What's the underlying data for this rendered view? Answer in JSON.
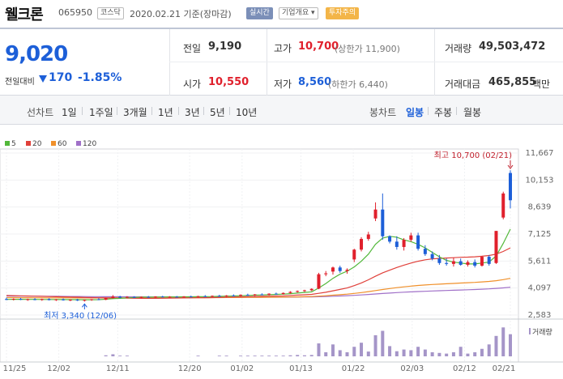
{
  "header": {
    "name": "웰크론",
    "code": "065950",
    "market": "코스닥",
    "date": "2020.02.21 기준(장마감)",
    "live_tag": "실시간",
    "info_tag": "기업개요 ▾",
    "warning_tag": "투자주의"
  },
  "summary": {
    "price": "9,020",
    "change_label": "전일대비",
    "change_value": "170",
    "change_pct": "-1.85%",
    "prev_label": "전일",
    "prev_value": "9,190",
    "high_label": "고가",
    "high_value": "10,700",
    "upper_limit": "(상한가 11,900)",
    "volume_label": "거래량",
    "volume_value": "49,503,472",
    "open_label": "시가",
    "open_value": "10,550",
    "low_label": "저가",
    "low_value": "8,560",
    "lower_limit": "(하한가 6,440)",
    "amount_label": "거래대금",
    "amount_value": "465,855",
    "amount_unit": "백만"
  },
  "rangebar": {
    "line_label": "선차트",
    "ranges": [
      "1일",
      "1주일",
      "3개월",
      "1년",
      "3년",
      "5년",
      "10년"
    ],
    "candle_label": "봉차트",
    "candles": [
      "일봉",
      "주봉",
      "월봉"
    ],
    "active_candle": "일봉"
  },
  "colors": {
    "up": "#e0202c",
    "down": "#1d5fd8",
    "ma5": "#52b83a",
    "ma20": "#e0403a",
    "ma60": "#f0902a",
    "ma120": "#a070c8",
    "volume": "#a595c8"
  },
  "chart_data": {
    "type": "candlestick",
    "legend": [
      {
        "name": "5",
        "color": "#52b83a"
      },
      {
        "name": "20",
        "color": "#e0403a"
      },
      {
        "name": "60",
        "color": "#f0902a"
      },
      {
        "name": "120",
        "color": "#a070c8"
      }
    ],
    "y_ticks": [
      "11,667",
      "10,153",
      "8,639",
      "7,125",
      "5,611",
      "4,097",
      "2,583"
    ],
    "ylim": [
      2583,
      11667
    ],
    "x_ticks": [
      "11/25",
      "12/02",
      "12/11",
      "12/20",
      "01/02",
      "01/13",
      "01/22",
      "02/03",
      "02/12",
      "02/21"
    ],
    "volume_label": "거래량",
    "high_annotation": "최고 10,700 (02/21)",
    "low_annotation": "최저 3,340 (12/06)",
    "candles": [
      {
        "o": 3480,
        "h": 3560,
        "l": 3420,
        "c": 3450
      },
      {
        "o": 3450,
        "h": 3520,
        "l": 3400,
        "c": 3490
      },
      {
        "o": 3490,
        "h": 3540,
        "l": 3420,
        "c": 3440
      },
      {
        "o": 3440,
        "h": 3500,
        "l": 3380,
        "c": 3470
      },
      {
        "o": 3470,
        "h": 3530,
        "l": 3410,
        "c": 3430
      },
      {
        "o": 3430,
        "h": 3500,
        "l": 3380,
        "c": 3480
      },
      {
        "o": 3480,
        "h": 3520,
        "l": 3400,
        "c": 3420
      },
      {
        "o": 3420,
        "h": 3480,
        "l": 3370,
        "c": 3460
      },
      {
        "o": 3460,
        "h": 3510,
        "l": 3390,
        "c": 3410
      },
      {
        "o": 3410,
        "h": 3470,
        "l": 3360,
        "c": 3440
      },
      {
        "o": 3440,
        "h": 3490,
        "l": 3370,
        "c": 3400
      },
      {
        "o": 3400,
        "h": 3460,
        "l": 3340,
        "c": 3430
      },
      {
        "o": 3430,
        "h": 3480,
        "l": 3380,
        "c": 3470
      },
      {
        "o": 3470,
        "h": 3520,
        "l": 3420,
        "c": 3440
      },
      {
        "o": 3440,
        "h": 3560,
        "l": 3420,
        "c": 3540
      },
      {
        "o": 3540,
        "h": 3700,
        "l": 3500,
        "c": 3620
      },
      {
        "o": 3620,
        "h": 3660,
        "l": 3520,
        "c": 3560
      },
      {
        "o": 3560,
        "h": 3640,
        "l": 3520,
        "c": 3600
      },
      {
        "o": 3600,
        "h": 3640,
        "l": 3540,
        "c": 3570
      },
      {
        "o": 3570,
        "h": 3620,
        "l": 3530,
        "c": 3600
      },
      {
        "o": 3600,
        "h": 3650,
        "l": 3550,
        "c": 3580
      },
      {
        "o": 3580,
        "h": 3640,
        "l": 3540,
        "c": 3620
      },
      {
        "o": 3620,
        "h": 3660,
        "l": 3570,
        "c": 3590
      },
      {
        "o": 3590,
        "h": 3640,
        "l": 3550,
        "c": 3610
      },
      {
        "o": 3610,
        "h": 3650,
        "l": 3570,
        "c": 3590
      },
      {
        "o": 3590,
        "h": 3640,
        "l": 3550,
        "c": 3620
      },
      {
        "o": 3620,
        "h": 3670,
        "l": 3580,
        "c": 3600
      },
      {
        "o": 3600,
        "h": 3660,
        "l": 3560,
        "c": 3640
      },
      {
        "o": 3640,
        "h": 3700,
        "l": 3600,
        "c": 3620
      },
      {
        "o": 3620,
        "h": 3680,
        "l": 3580,
        "c": 3660
      },
      {
        "o": 3660,
        "h": 3720,
        "l": 3620,
        "c": 3640
      },
      {
        "o": 3640,
        "h": 3700,
        "l": 3600,
        "c": 3680
      },
      {
        "o": 3680,
        "h": 3740,
        "l": 3630,
        "c": 3660
      },
      {
        "o": 3660,
        "h": 3740,
        "l": 3620,
        "c": 3720
      },
      {
        "o": 3720,
        "h": 3780,
        "l": 3660,
        "c": 3690
      },
      {
        "o": 3690,
        "h": 3760,
        "l": 3650,
        "c": 3740
      },
      {
        "o": 3740,
        "h": 3800,
        "l": 3700,
        "c": 3720
      },
      {
        "o": 3720,
        "h": 3800,
        "l": 3680,
        "c": 3780
      },
      {
        "o": 3780,
        "h": 3840,
        "l": 3740,
        "c": 3760
      },
      {
        "o": 3760,
        "h": 3850,
        "l": 3730,
        "c": 3820
      },
      {
        "o": 3820,
        "h": 3920,
        "l": 3780,
        "c": 3880
      },
      {
        "o": 3880,
        "h": 3960,
        "l": 3840,
        "c": 3930
      },
      {
        "o": 3930,
        "h": 4000,
        "l": 3880,
        "c": 3970
      },
      {
        "o": 3970,
        "h": 4080,
        "l": 3930,
        "c": 4050
      },
      {
        "o": 4060,
        "h": 4950,
        "l": 4030,
        "c": 4870
      },
      {
        "o": 4870,
        "h": 5050,
        "l": 4760,
        "c": 4920
      },
      {
        "o": 5020,
        "h": 5300,
        "l": 4850,
        "c": 5250
      },
      {
        "o": 5250,
        "h": 5350,
        "l": 4950,
        "c": 5050
      },
      {
        "o": 5050,
        "h": 5200,
        "l": 4900,
        "c": 5120
      },
      {
        "o": 5700,
        "h": 6300,
        "l": 5550,
        "c": 6250
      },
      {
        "o": 6250,
        "h": 6950,
        "l": 6150,
        "c": 6850
      },
      {
        "o": 6850,
        "h": 7250,
        "l": 6750,
        "c": 7100
      },
      {
        "o": 8000,
        "h": 8900,
        "l": 7850,
        "c": 8500
      },
      {
        "o": 8500,
        "h": 9400,
        "l": 6800,
        "c": 7000
      },
      {
        "o": 7000,
        "h": 7050,
        "l": 6600,
        "c": 6700
      },
      {
        "o": 6700,
        "h": 7000,
        "l": 6250,
        "c": 6400
      },
      {
        "o": 6400,
        "h": 6900,
        "l": 6200,
        "c": 6800
      },
      {
        "o": 6800,
        "h": 7200,
        "l": 6700,
        "c": 7050
      },
      {
        "o": 7050,
        "h": 7200,
        "l": 6200,
        "c": 6300
      },
      {
        "o": 6300,
        "h": 6500,
        "l": 5900,
        "c": 6000
      },
      {
        "o": 6000,
        "h": 6150,
        "l": 5650,
        "c": 5750
      },
      {
        "o": 5750,
        "h": 5950,
        "l": 5400,
        "c": 5500
      },
      {
        "o": 5500,
        "h": 5750,
        "l": 5350,
        "c": 5450
      },
      {
        "o": 5450,
        "h": 5800,
        "l": 5300,
        "c": 5600
      },
      {
        "o": 5600,
        "h": 5750,
        "l": 5350,
        "c": 5400
      },
      {
        "o": 5400,
        "h": 5650,
        "l": 5300,
        "c": 5550
      },
      {
        "o": 5550,
        "h": 5700,
        "l": 5250,
        "c": 5350
      },
      {
        "o": 5350,
        "h": 5900,
        "l": 5300,
        "c": 5850
      },
      {
        "o": 5850,
        "h": 5950,
        "l": 5350,
        "c": 5450
      },
      {
        "o": 5500,
        "h": 7300,
        "l": 5450,
        "c": 7300
      },
      {
        "o": 8050,
        "h": 9500,
        "l": 7950,
        "c": 9400
      },
      {
        "o": 10550,
        "h": 10700,
        "l": 8560,
        "c": 9020
      }
    ],
    "ma5": [
      3460,
      3465,
      3462,
      3460,
      3458,
      3456,
      3455,
      3452,
      3450,
      3448,
      3446,
      3440,
      3442,
      3445,
      3470,
      3500,
      3520,
      3545,
      3570,
      3585,
      3590,
      3590,
      3595,
      3600,
      3602,
      3604,
      3606,
      3610,
      3615,
      3620,
      3630,
      3640,
      3650,
      3665,
      3680,
      3695,
      3710,
      3725,
      3740,
      3755,
      3780,
      3815,
      3850,
      3880,
      4100,
      4350,
      4640,
      4870,
      5040,
      5280,
      5600,
      6000,
      6550,
      6900,
      7000,
      6950,
      6800,
      6700,
      6550,
      6350,
      6100,
      5850,
      5650,
      5550,
      5500,
      5450,
      5450,
      5500,
      5550,
      5900,
      6600,
      7400
    ],
    "ma20": [
      3680,
      3670,
      3660,
      3650,
      3640,
      3630,
      3620,
      3610,
      3600,
      3590,
      3580,
      3570,
      3560,
      3550,
      3545,
      3540,
      3535,
      3530,
      3525,
      3520,
      3520,
      3520,
      3525,
      3530,
      3535,
      3540,
      3545,
      3550,
      3555,
      3560,
      3570,
      3580,
      3590,
      3600,
      3610,
      3620,
      3630,
      3640,
      3650,
      3660,
      3680,
      3700,
      3720,
      3740,
      3800,
      3860,
      3940,
      4020,
      4100,
      4230,
      4380,
      4560,
      4760,
      4950,
      5100,
      5250,
      5380,
      5500,
      5600,
      5680,
      5730,
      5760,
      5780,
      5800,
      5820,
      5830,
      5850,
      5880,
      5920,
      6000,
      6150,
      6350
    ],
    "ma60": [
      3560,
      3560,
      3555,
      3555,
      3550,
      3550,
      3548,
      3546,
      3545,
      3544,
      3543,
      3542,
      3540,
      3540,
      3540,
      3540,
      3540,
      3540,
      3541,
      3542,
      3543,
      3544,
      3545,
      3546,
      3548,
      3550,
      3552,
      3554,
      3556,
      3558,
      3560,
      3562,
      3565,
      3568,
      3571,
      3574,
      3577,
      3580,
      3584,
      3588,
      3595,
      3602,
      3610,
      3618,
      3640,
      3665,
      3695,
      3725,
      3755,
      3795,
      3840,
      3895,
      3955,
      4015,
      4070,
      4120,
      4165,
      4205,
      4240,
      4270,
      4295,
      4315,
      4335,
      4355,
      4375,
      4395,
      4415,
      4440,
      4470,
      4510,
      4570,
      4640
    ],
    "ma120": [
      3650,
      3648,
      3645,
      3642,
      3640,
      3637,
      3634,
      3631,
      3628,
      3625,
      3622,
      3619,
      3616,
      3613,
      3610,
      3608,
      3606,
      3604,
      3602,
      3600,
      3598,
      3596,
      3594,
      3592,
      3590,
      3588,
      3586,
      3584,
      3582,
      3580,
      3580,
      3580,
      3580,
      3580,
      3580,
      3580,
      3580,
      3580,
      3582,
      3584,
      3587,
      3590,
      3594,
      3598,
      3610,
      3622,
      3636,
      3652,
      3668,
      3688,
      3710,
      3735,
      3762,
      3790,
      3816,
      3840,
      3862,
      3882,
      3900,
      3916,
      3930,
      3944,
      3958,
      3972,
      3986,
      4000,
      4015,
      4032,
      4052,
      4076,
      4106,
      4140
    ],
    "volume": [
      0.01,
      0.01,
      0.01,
      0.01,
      0.01,
      0.01,
      0.01,
      0.01,
      0.01,
      0.01,
      0.01,
      0.01,
      0.01,
      0.01,
      0.03,
      0.06,
      0.02,
      0.02,
      0.01,
      0.01,
      0.01,
      0.01,
      0.01,
      0.01,
      0.01,
      0.01,
      0.01,
      0.02,
      0.01,
      0.01,
      0.02,
      0.02,
      0.01,
      0.02,
      0.02,
      0.02,
      0.02,
      0.02,
      0.02,
      0.02,
      0.03,
      0.04,
      0.03,
      0.04,
      0.38,
      0.12,
      0.35,
      0.18,
      0.12,
      0.28,
      0.4,
      0.14,
      0.62,
      0.75,
      0.3,
      0.15,
      0.2,
      0.18,
      0.28,
      0.2,
      0.12,
      0.1,
      0.08,
      0.12,
      0.28,
      0.08,
      0.12,
      0.22,
      0.35,
      0.6,
      0.85,
      0.65
    ]
  }
}
